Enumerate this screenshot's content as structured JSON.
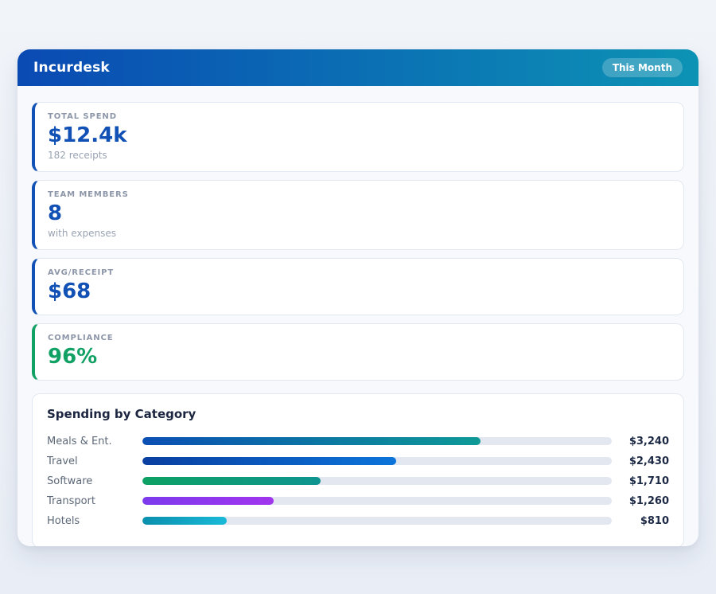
{
  "colors": {
    "header_gradient_from": "#0a4ab3",
    "header_gradient_to": "#0c93b4",
    "accent_blue": "#1150b4",
    "accent_green": "#12a164",
    "bar_track": "#e3e8f0"
  },
  "header": {
    "title": "Incurdesk",
    "period_badge": "This Month"
  },
  "stats": [
    {
      "label": "TOTAL SPEND",
      "value": "$12.4k",
      "sub": "182 receipts",
      "accent": "#1150b4"
    },
    {
      "label": "TEAM MEMBERS",
      "value": "8",
      "sub": "with expenses",
      "accent": "#1150b4"
    },
    {
      "label": "AVG/RECEIPT",
      "value": "$68",
      "sub": "",
      "accent": "#1150b4"
    },
    {
      "label": "COMPLIANCE",
      "value": "96%",
      "sub": "",
      "accent": "#12a164"
    }
  ],
  "chart_data": {
    "type": "bar",
    "orientation": "horizontal",
    "title": "Spending by Category",
    "categories": [
      "Meals & Ent.",
      "Travel",
      "Software",
      "Transport",
      "Hotels"
    ],
    "values": [
      3240,
      2430,
      1710,
      1260,
      810
    ],
    "value_labels": [
      "$3,240",
      "$2,430",
      "$1,710",
      "$1,260",
      "$810"
    ],
    "scale_max": 4500,
    "grid": false,
    "legend": false,
    "bar_gradients": [
      [
        "#0b4fb3",
        "#0e9a96"
      ],
      [
        "#0a3fa0",
        "#0c74da"
      ],
      [
        "#0ca164",
        "#0e948f"
      ],
      [
        "#7c3aed",
        "#a135ee"
      ],
      [
        "#0a8fae",
        "#1ab9d8"
      ]
    ]
  }
}
